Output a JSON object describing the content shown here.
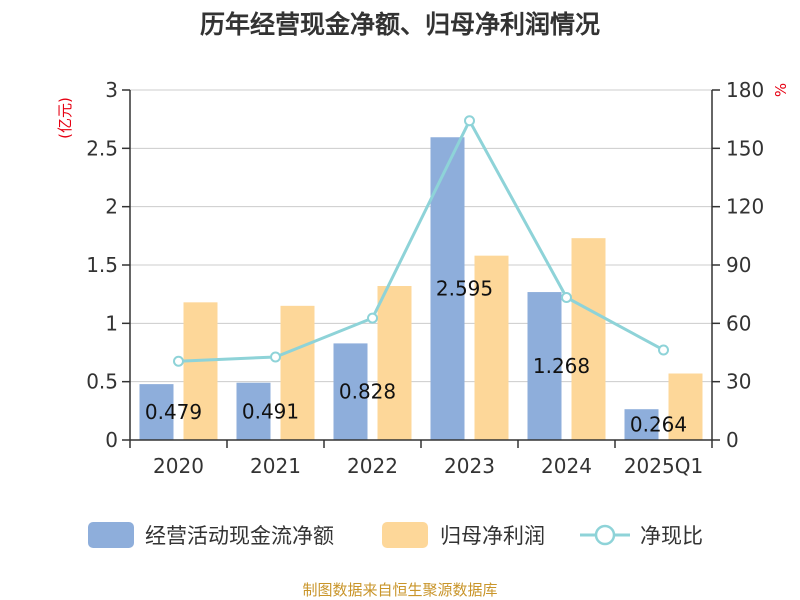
{
  "chart_data": {
    "type": "bar+line",
    "title": "历年经营现金净额、归母净利润情况",
    "categories": [
      "2020",
      "2021",
      "2022",
      "2023",
      "2024",
      "2025Q1"
    ],
    "series": [
      {
        "name": "经营活动现金流净额",
        "type": "bar",
        "axis": "left",
        "color": "#8eaedb",
        "values": [
          0.479,
          0.491,
          0.828,
          2.595,
          1.268,
          0.264
        ],
        "labels": [
          "0.479",
          "0.491",
          "0.828",
          "2.595",
          "1.268",
          "0.264"
        ]
      },
      {
        "name": "归母净利润",
        "type": "bar",
        "axis": "left",
        "color": "#fdd799",
        "values": [
          1.18,
          1.15,
          1.32,
          1.58,
          1.73,
          0.57
        ]
      },
      {
        "name": "净现比",
        "type": "line",
        "axis": "right",
        "color": "#8ed3d8",
        "values": [
          40.5,
          42.7,
          62.7,
          164.2,
          73.3,
          46.3
        ]
      }
    ],
    "yleft": {
      "unit": "(亿元)",
      "min": 0,
      "max": 3,
      "ticks": [
        "0",
        "0.5",
        "1",
        "1.5",
        "2",
        "2.5",
        "3"
      ]
    },
    "yright": {
      "unit": "%",
      "min": 0,
      "max": 180,
      "ticks": [
        "0",
        "30",
        "60",
        "90",
        "120",
        "150",
        "180"
      ]
    },
    "grid": true,
    "legend": "bottom"
  },
  "source": "制图数据来自恒生聚源数据库"
}
